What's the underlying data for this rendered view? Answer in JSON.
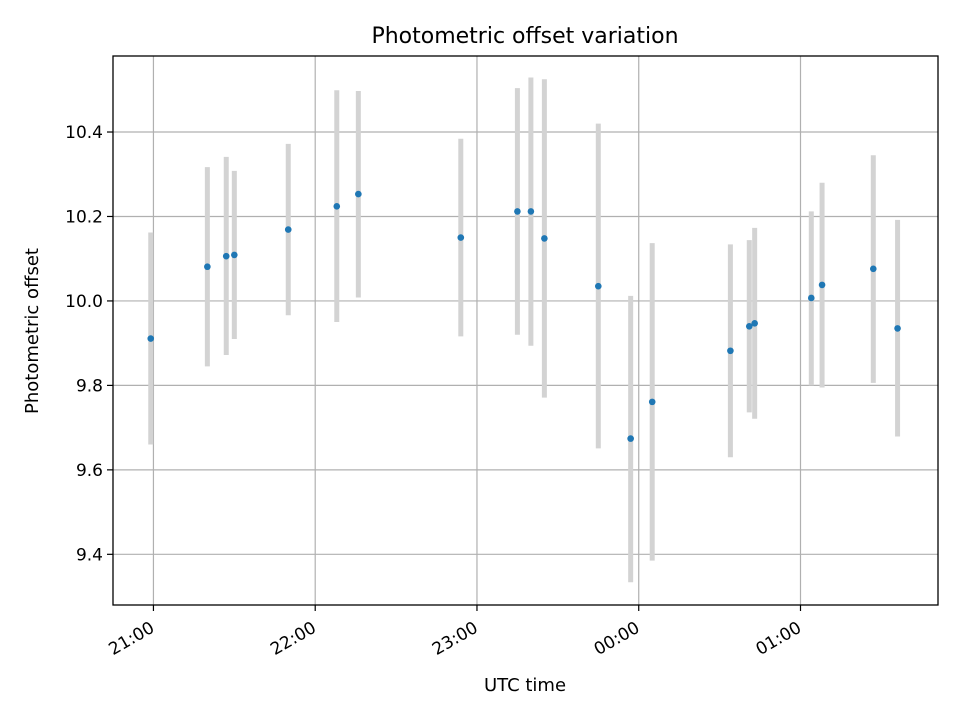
{
  "chart_data": {
    "type": "scatter",
    "title": "Photometric offset variation",
    "xlabel": "UTC time",
    "ylabel": "Photometric offset",
    "x_axis": {
      "kind": "time",
      "range": [
        "20:45",
        "01:51"
      ],
      "ticks": [
        "21:00",
        "22:00",
        "23:00",
        "00:00",
        "01:00"
      ]
    },
    "y_axis": {
      "range": [
        9.28,
        10.58
      ],
      "ticks": [
        "9.4",
        "9.6",
        "9.8",
        "10.0",
        "10.2",
        "10.4"
      ]
    },
    "grid": true,
    "colors": {
      "point": "#1f77b4",
      "errorbar": "#d3d3d3",
      "grid": "#b0b0b0"
    },
    "points": [
      {
        "time": "20:59",
        "y": 9.911,
        "ylow": 9.66,
        "yhigh": 10.162
      },
      {
        "time": "21:20",
        "y": 10.081,
        "ylow": 9.845,
        "yhigh": 10.317
      },
      {
        "time": "21:27",
        "y": 10.106,
        "ylow": 9.872,
        "yhigh": 10.341
      },
      {
        "time": "21:30",
        "y": 10.109,
        "ylow": 9.91,
        "yhigh": 10.308
      },
      {
        "time": "21:50",
        "y": 10.169,
        "ylow": 9.966,
        "yhigh": 10.372
      },
      {
        "time": "22:08",
        "y": 10.224,
        "ylow": 9.95,
        "yhigh": 10.499
      },
      {
        "time": "22:16",
        "y": 10.253,
        "ylow": 10.008,
        "yhigh": 10.497
      },
      {
        "time": "22:54",
        "y": 10.15,
        "ylow": 9.916,
        "yhigh": 10.384
      },
      {
        "time": "23:15",
        "y": 10.212,
        "ylow": 9.92,
        "yhigh": 10.504
      },
      {
        "time": "23:20",
        "y": 10.212,
        "ylow": 9.894,
        "yhigh": 10.529
      },
      {
        "time": "23:25",
        "y": 10.148,
        "ylow": 9.771,
        "yhigh": 10.525
      },
      {
        "time": "23:45",
        "y": 10.035,
        "ylow": 9.651,
        "yhigh": 10.42
      },
      {
        "time": "23:57",
        "y": 9.674,
        "ylow": 9.334,
        "yhigh": 10.012
      },
      {
        "time": "00:05",
        "y": 9.761,
        "ylow": 9.385,
        "yhigh": 10.137
      },
      {
        "time": "00:34",
        "y": 9.882,
        "ylow": 9.63,
        "yhigh": 10.134
      },
      {
        "time": "00:41",
        "y": 9.94,
        "ylow": 9.736,
        "yhigh": 10.144
      },
      {
        "time": "00:43",
        "y": 9.947,
        "ylow": 9.721,
        "yhigh": 10.173
      },
      {
        "time": "01:04",
        "y": 10.007,
        "ylow": 9.8,
        "yhigh": 10.212
      },
      {
        "time": "01:08",
        "y": 10.038,
        "ylow": 9.795,
        "yhigh": 10.28
      },
      {
        "time": "01:27",
        "y": 10.076,
        "ylow": 9.806,
        "yhigh": 10.345
      },
      {
        "time": "01:36",
        "y": 9.935,
        "ylow": 9.679,
        "yhigh": 10.192
      }
    ]
  }
}
